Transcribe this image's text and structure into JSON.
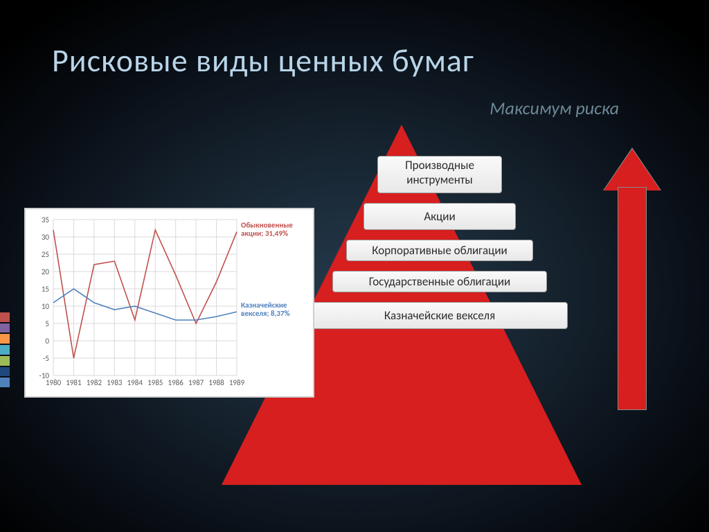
{
  "title": "Рисковые виды ценных бумаг",
  "subtitle": "Максимум риска",
  "tab_colors": [
    "#c0504d",
    "#8064a2",
    "#f79646",
    "#4bacc6",
    "#9bbb59",
    "#1f497d",
    "#4f81bd"
  ],
  "pyramid": {
    "color": "#d71f1f",
    "levels": [
      "Производные инструменты",
      "Акции",
      "Корпоративные облигации",
      "Государственные облигации",
      "Казначейские векселя"
    ],
    "level_bg": "#f0f0f0",
    "level_text_color": "#2b2b2b",
    "level_fontsize": 17
  },
  "arrow": {
    "color": "#d71f1f"
  },
  "chart": {
    "type": "line",
    "background": "#ffffff",
    "grid_color": "#d9d9d9",
    "x_categories": [
      "1980",
      "1981",
      "1982",
      "1983",
      "1984",
      "1985",
      "1986",
      "1987",
      "1988",
      "1989"
    ],
    "ylim": [
      -10,
      35
    ],
    "ytick_step": 5,
    "series": [
      {
        "name": "Обыкновенные акции",
        "label": "Обыкновенные\nакции; 31,49%",
        "color": "#c0504d",
        "line_width": 1.6,
        "values": [
          32,
          -5,
          22,
          23,
          6,
          32,
          19,
          5,
          17,
          31.49
        ]
      },
      {
        "name": "Казначейские векселя",
        "label": "Казначейские\nвекселя; 8,37%",
        "color": "#4f81bd",
        "line_width": 1.6,
        "values": [
          11,
          15,
          11,
          9,
          10,
          8,
          6,
          6,
          7,
          8.37
        ]
      }
    ],
    "tick_fontsize": 11,
    "label_fontsize": 11
  }
}
